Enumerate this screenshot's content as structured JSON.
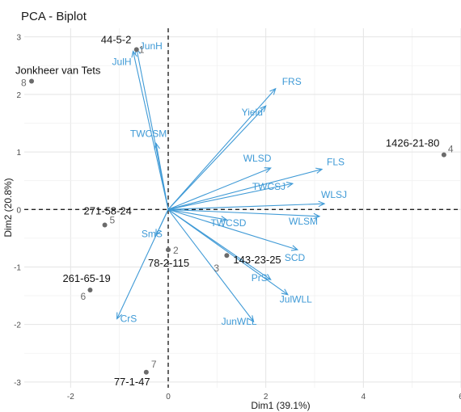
{
  "chart_data": {
    "type": "scatter",
    "title": "PCA - Biplot",
    "xlabel": "Dim1 (39.1%)",
    "ylabel": "Dim2 (20.8%)",
    "xlim": [
      -2.95,
      6.0
    ],
    "ylim": [
      -3.1,
      3.15
    ],
    "xticks": [
      -2,
      0,
      2,
      4,
      6
    ],
    "yticks": [
      -3,
      -2,
      -1,
      0,
      1,
      2,
      3
    ],
    "grid": true,
    "reference_lines": [
      0,
      0
    ],
    "colors": {
      "points": "#6b6b6b",
      "arrows": "#3f9ad6",
      "labels": "#3f9ad6"
    },
    "individuals": [
      {
        "index": "1",
        "name": "44-5-2",
        "x": -0.65,
        "y": 2.78
      },
      {
        "index": "2",
        "name": "78-2-115",
        "x": 0.0,
        "y": -0.7
      },
      {
        "index": "3",
        "name": "143-23-25",
        "x": 1.2,
        "y": -0.8
      },
      {
        "index": "4",
        "name": "1426-21-80",
        "x": 5.65,
        "y": 0.95
      },
      {
        "index": "5",
        "name": "271-58-24",
        "x": -1.3,
        "y": -0.27
      },
      {
        "index": "6",
        "name": "261-65-19",
        "x": -1.6,
        "y": -1.4
      },
      {
        "index": "7",
        "name": "77-1-47",
        "x": -0.45,
        "y": -2.83
      },
      {
        "index": "8",
        "name": "Jonkheer van Tets",
        "x": -2.8,
        "y": 2.23
      }
    ],
    "variables": [
      {
        "name": "JunH",
        "x": -0.65,
        "y": 2.8
      },
      {
        "name": "JulH",
        "x": -0.72,
        "y": 2.75
      },
      {
        "name": "FRS",
        "x": 2.2,
        "y": 2.1
      },
      {
        "name": "Yield",
        "x": 2.0,
        "y": 1.8
      },
      {
        "name": "TWCSM",
        "x": -0.25,
        "y": 1.15
      },
      {
        "name": "WLSD",
        "x": 2.1,
        "y": 0.72
      },
      {
        "name": "FLS",
        "x": 3.15,
        "y": 0.7
      },
      {
        "name": "TWCSJ",
        "x": 2.55,
        "y": 0.45
      },
      {
        "name": "WLSJ",
        "x": 3.2,
        "y": 0.1
      },
      {
        "name": "TWCSD",
        "x": 1.2,
        "y": -0.18
      },
      {
        "name": "WLSM",
        "x": 3.1,
        "y": -0.12
      },
      {
        "name": "SmS",
        "x": -0.25,
        "y": -0.45
      },
      {
        "name": "SCD",
        "x": 2.65,
        "y": -0.7
      },
      {
        "name": "PrS",
        "x": 2.1,
        "y": -1.22
      },
      {
        "name": "JulWLL",
        "x": 2.45,
        "y": -1.48
      },
      {
        "name": "JunWLL",
        "x": 1.75,
        "y": -1.95
      },
      {
        "name": "CrS",
        "x": -1.05,
        "y": -1.9
      }
    ]
  }
}
